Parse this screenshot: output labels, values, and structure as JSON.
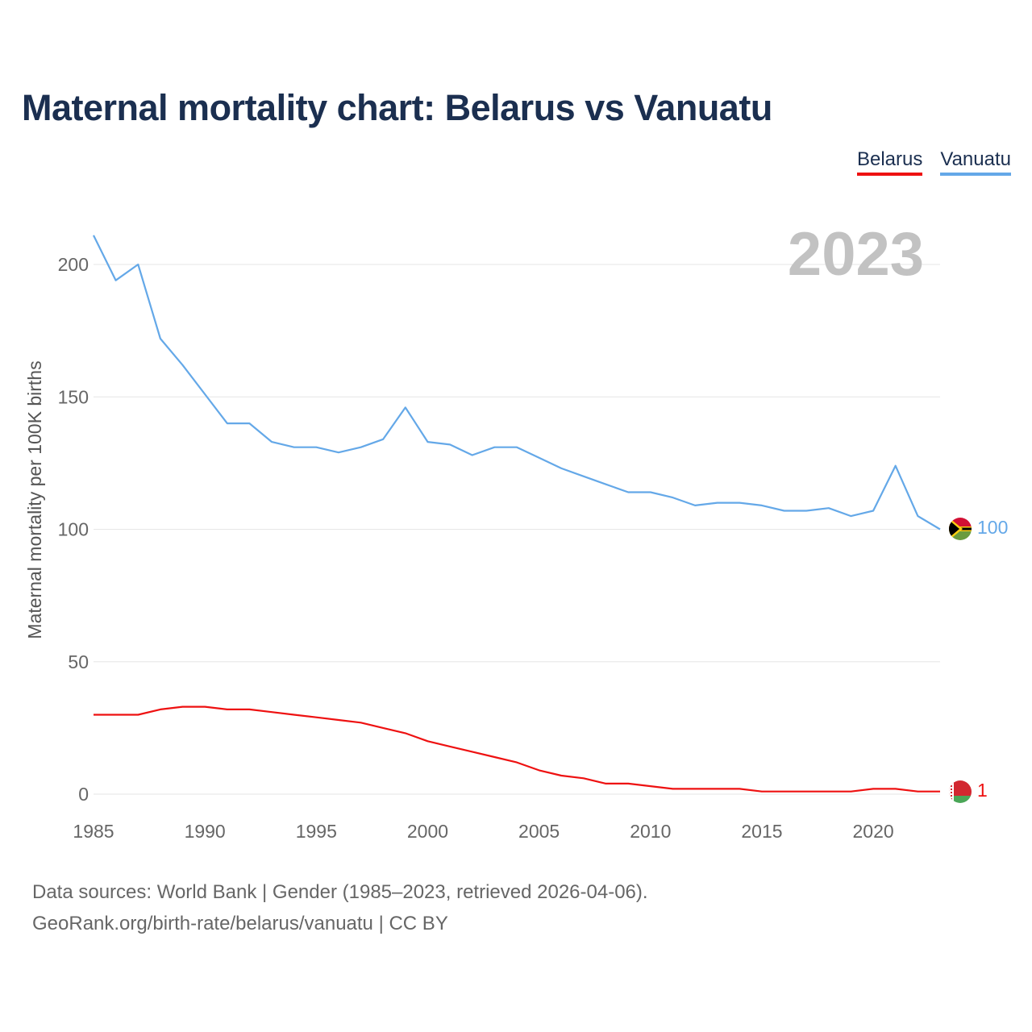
{
  "chart_data": {
    "type": "line",
    "title": "Maternal mortality chart: Belarus vs Vanuatu",
    "ylabel": "Maternal mortality per 100K births",
    "xlabel": "",
    "year_label": "2023",
    "xlim": [
      1985,
      2023
    ],
    "ylim": [
      0,
      210
    ],
    "yticks": [
      0,
      50,
      100,
      150,
      200
    ],
    "xticks": [
      1985,
      1990,
      1995,
      2000,
      2005,
      2010,
      2015,
      2020
    ],
    "x": [
      1985,
      1986,
      1987,
      1988,
      1989,
      1990,
      1991,
      1992,
      1993,
      1994,
      1995,
      1996,
      1997,
      1998,
      1999,
      2000,
      2001,
      2002,
      2003,
      2004,
      2005,
      2006,
      2007,
      2008,
      2009,
      2010,
      2011,
      2012,
      2013,
      2014,
      2015,
      2016,
      2017,
      2018,
      2019,
      2020,
      2021,
      2022,
      2023
    ],
    "series": [
      {
        "name": "Belarus",
        "color": "#ee1111",
        "values": [
          30,
          30,
          30,
          32,
          33,
          33,
          32,
          32,
          31,
          30,
          29,
          28,
          27,
          25,
          23,
          20,
          18,
          16,
          14,
          12,
          9,
          7,
          6,
          4,
          4,
          3,
          2,
          2,
          2,
          2,
          1,
          1,
          1,
          1,
          1,
          2,
          2,
          1,
          1
        ],
        "end_label": "1",
        "flag": "belarus-flag-icon"
      },
      {
        "name": "Vanuatu",
        "color": "#64a8e8",
        "values": [
          211,
          194,
          200,
          172,
          162,
          151,
          140,
          140,
          133,
          131,
          131,
          129,
          131,
          134,
          146,
          133,
          132,
          128,
          131,
          131,
          127,
          123,
          120,
          117,
          114,
          114,
          112,
          109,
          110,
          110,
          109,
          107,
          107,
          108,
          105,
          107,
          124,
          105,
          100
        ],
        "end_label": "100",
        "flag": "vanuatu-flag-icon"
      }
    ]
  },
  "footer": {
    "line1": "Data sources: World Bank | Gender (1985–2023, retrieved 2026-04-06).",
    "line2": "GeoRank.org/birth-rate/belarus/vanuatu | CC BY"
  }
}
